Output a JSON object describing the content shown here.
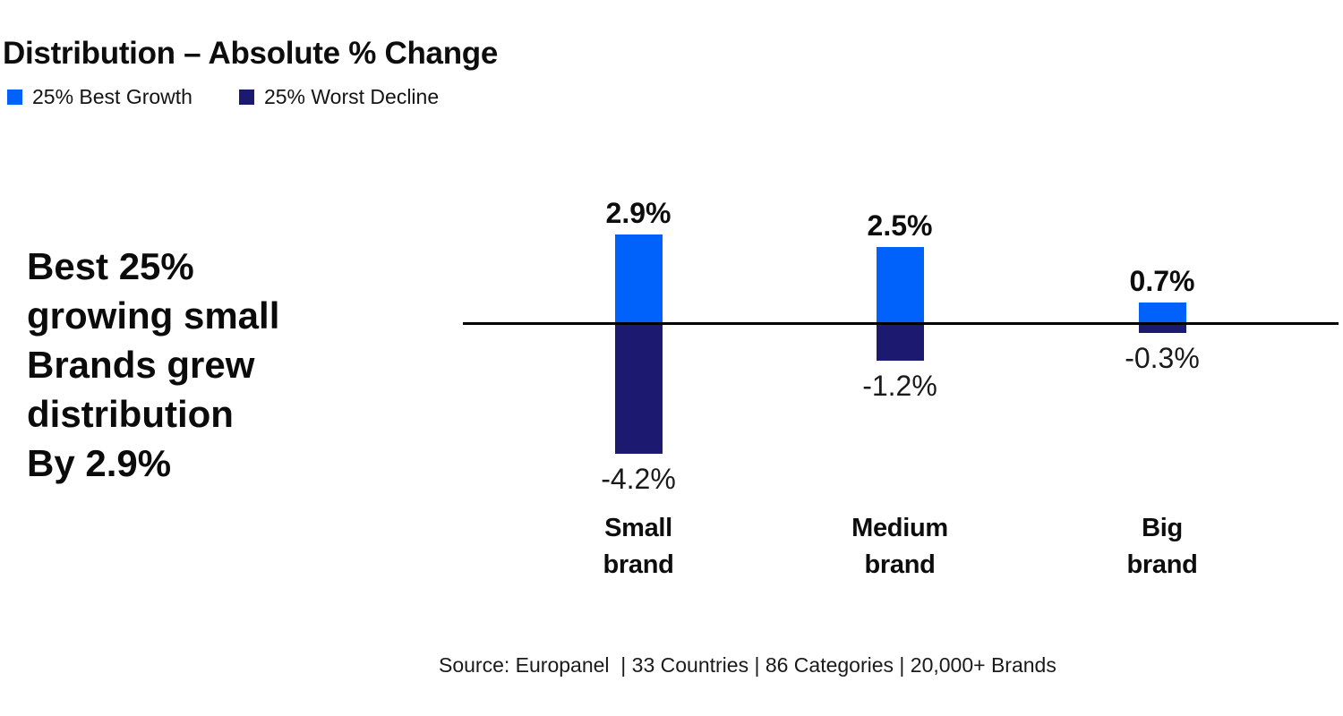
{
  "page": {
    "title": "Distribution – Absolute % Change",
    "headline_lines": [
      "Best 25%",
      "growing small",
      "Brands grew",
      "distribution",
      "By 2.9%"
    ],
    "source_note": "Source: Europanel  | 33 Countries | 86 Categories | 20,000+ Brands"
  },
  "legend": {
    "items": [
      {
        "label": "25% Best Growth",
        "color": "#0161FB"
      },
      {
        "label": "25% Worst Decline",
        "color": "#1B1A70"
      }
    ]
  },
  "chart_data": {
    "type": "bar",
    "title": "Distribution – Absolute % Change",
    "categories": [
      "Small brand",
      "Medium brand",
      "Big brand"
    ],
    "category_display": [
      "Small\nbrand",
      "Medium\nbrand",
      "Big\nbrand"
    ],
    "series": [
      {
        "name": "25% Best Growth",
        "color": "#0161FB",
        "values": [
          2.9,
          2.5,
          0.7
        ],
        "data_labels": [
          "2.9%",
          "2.5%",
          "0.7%"
        ]
      },
      {
        "name": "25% Worst Decline",
        "color": "#1B1A70",
        "values": [
          -4.2,
          -1.2,
          -0.3
        ],
        "data_labels": [
          "-4.2%",
          "-1.2%",
          "-0.3%"
        ]
      }
    ],
    "baseline": 0,
    "ylim": [
      -4.6,
      3.1
    ],
    "grid": false,
    "axis_line_color": "#000000",
    "legend_position": "top-left",
    "value_label_position": "outside-ends"
  },
  "colors": {
    "background": "#ffffff",
    "accent_blue": "#0161FB",
    "accent_navy": "#1B1A70",
    "text": "#0d0d0d"
  }
}
